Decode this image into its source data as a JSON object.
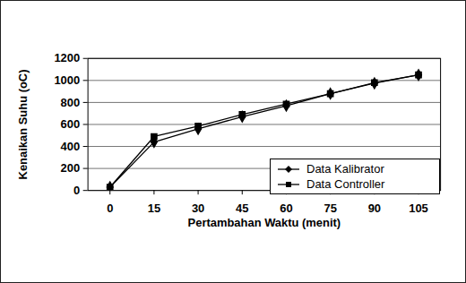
{
  "chart_data": {
    "type": "line",
    "x_label": "Pertambahan Waktu (menit)",
    "y_label": "Kenaikan Suhu (oC)",
    "x": [
      0,
      15,
      30,
      45,
      60,
      75,
      90,
      105
    ],
    "series": [
      {
        "name": "Data Kalibrator",
        "color": "#000000",
        "marker": "diamond",
        "line_style": "solid",
        "values": [
          30,
          440,
          560,
          670,
          770,
          880,
          975,
          1050
        ]
      },
      {
        "name": "Data Controller",
        "color": "#000000",
        "marker": "square",
        "line_style": "solid",
        "values": [
          30,
          490,
          585,
          690,
          785,
          880,
          980,
          1050
        ]
      }
    ],
    "xlim": [
      -7.5,
      112.5
    ],
    "xticks": [
      0,
      15,
      30,
      45,
      60,
      75,
      90,
      105
    ],
    "ylim": [
      0,
      1200
    ],
    "yticks": [
      0,
      200,
      400,
      600,
      800,
      1000,
      1200
    ],
    "grid": true,
    "legend": "lower right"
  }
}
